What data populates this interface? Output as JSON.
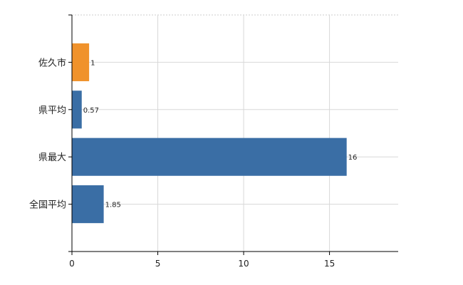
{
  "chart_data": {
    "type": "bar",
    "orientation": "horizontal",
    "categories": [
      "佐久市",
      "県平均",
      "県最大",
      "全国平均"
    ],
    "values": [
      1,
      0.57,
      16,
      1.85
    ],
    "value_labels": [
      "1",
      "0.57",
      "16",
      "1.85"
    ],
    "colors": [
      "#f0922b",
      "#3a6ea5",
      "#3a6ea5",
      "#3a6ea5"
    ],
    "xlim": [
      0,
      19
    ],
    "xticks": [
      0,
      5,
      10,
      15
    ],
    "xtick_labels": [
      "0",
      "5",
      "10",
      "15"
    ],
    "grid": true,
    "title": "",
    "xlabel": "",
    "ylabel": ""
  }
}
